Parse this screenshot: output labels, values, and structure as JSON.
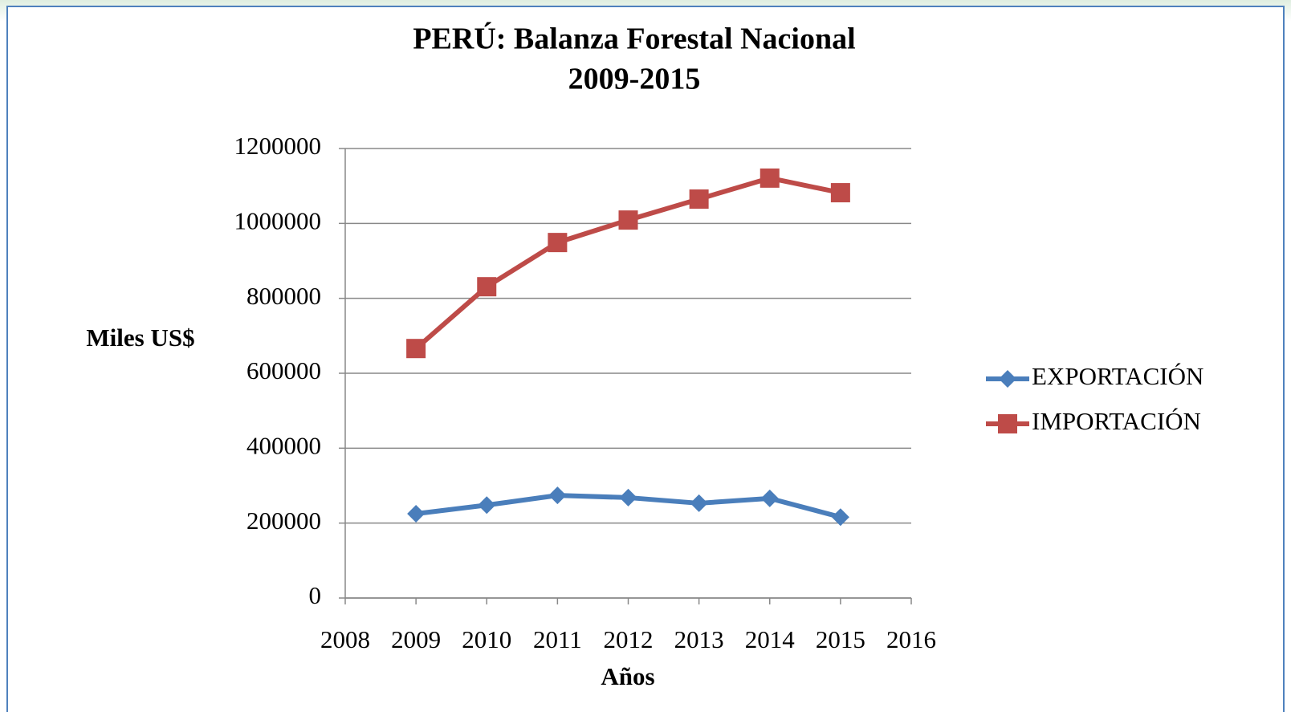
{
  "chart_data": {
    "type": "line",
    "title": [
      "PERÚ: Balanza Forestal Nacional",
      "2009-2015"
    ],
    "x_label": "Años",
    "y_label": "Miles US$",
    "x": [
      2009,
      2010,
      2011,
      2012,
      2013,
      2014,
      2015
    ],
    "series": [
      {
        "name": "EXPORTACIÓN",
        "color": "#4a7ebb",
        "marker": "diamond",
        "values": [
          225000,
          248000,
          274000,
          268000,
          253000,
          266000,
          216000
        ]
      },
      {
        "name": "IMPORTACIÓN",
        "color": "#be4b48",
        "marker": "square",
        "values": [
          666000,
          831000,
          949000,
          1009000,
          1065000,
          1121000,
          1082000
        ]
      }
    ],
    "xlim": [
      2008,
      2016
    ],
    "xticks": [
      2008,
      2009,
      2010,
      2011,
      2012,
      2013,
      2014,
      2015,
      2016
    ],
    "ylim": [
      0,
      1200000
    ],
    "yticks": [
      0,
      200000,
      400000,
      600000,
      800000,
      1000000,
      1200000
    ],
    "grid": true,
    "legend": "right"
  }
}
